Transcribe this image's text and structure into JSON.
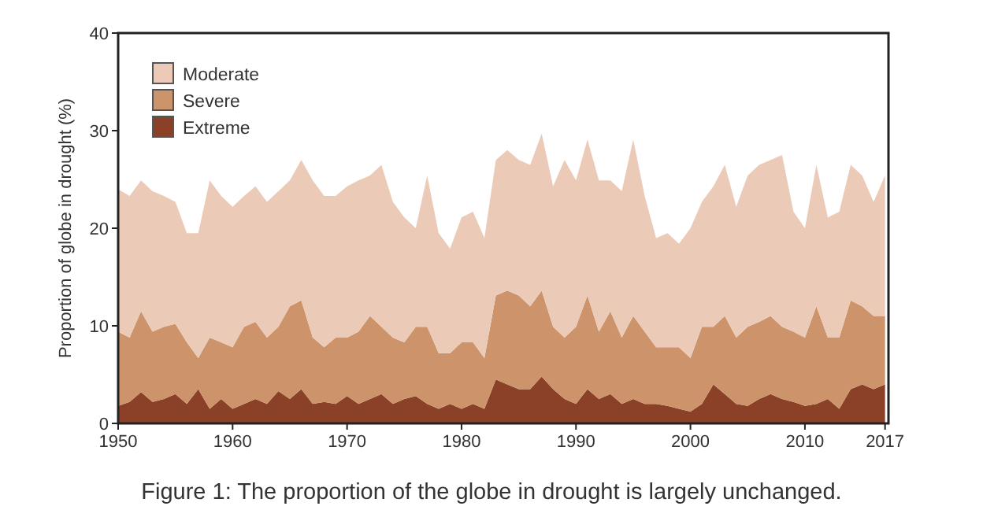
{
  "chart_data": {
    "type": "area",
    "stacked": true,
    "ylabel": "Proportion of globe in drought (%)",
    "x": [
      1950,
      1951,
      1952,
      1953,
      1954,
      1955,
      1956,
      1957,
      1958,
      1959,
      1960,
      1961,
      1962,
      1963,
      1964,
      1965,
      1966,
      1967,
      1968,
      1969,
      1970,
      1971,
      1972,
      1973,
      1974,
      1975,
      1976,
      1977,
      1978,
      1979,
      1980,
      1981,
      1982,
      1983,
      1984,
      1985,
      1986,
      1987,
      1988,
      1989,
      1990,
      1991,
      1992,
      1993,
      1994,
      1995,
      1996,
      1997,
      1998,
      1999,
      2000,
      2001,
      2002,
      2003,
      2004,
      2005,
      2006,
      2007,
      2008,
      2009,
      2010,
      2011,
      2012,
      2013,
      2014,
      2015,
      2016,
      2017
    ],
    "series": [
      {
        "name": "Extreme",
        "color": "#8a4127",
        "values": [
          1.8,
          2.2,
          3.2,
          2.2,
          2.5,
          3,
          2,
          3.5,
          1.5,
          2.5,
          1.5,
          2,
          2.5,
          2,
          3.3,
          2.5,
          3.5,
          2,
          2.2,
          2,
          2.8,
          2,
          2.5,
          3,
          2,
          2.5,
          2.8,
          2,
          1.5,
          2,
          1.5,
          2,
          1.5,
          4.5,
          4,
          3.5,
          3.5,
          4.8,
          3.5,
          2.5,
          2,
          3.5,
          2.5,
          3,
          2,
          2.5,
          2,
          2,
          1.8,
          1.5,
          1.2,
          2,
          4,
          3,
          2,
          1.8,
          2.5,
          3,
          2.5,
          2.2,
          1.8,
          2,
          2.5,
          1.5,
          3.5,
          4,
          3.5,
          4
        ]
      },
      {
        "name": "Severe",
        "color": "#cd946b",
        "values": [
          7.6,
          6.6,
          8.3,
          7.2,
          7.4,
          7.2,
          6.3,
          3.2,
          7.3,
          5.8,
          6.3,
          7.9,
          7.9,
          6.8,
          6.6,
          9.5,
          9.1,
          6.8,
          5.6,
          6.8,
          6,
          7.4,
          8.5,
          6.9,
          6.8,
          5.8,
          7.1,
          7.9,
          5.7,
          5.2,
          6.8,
          6.3,
          5.2,
          8.6,
          9.6,
          9.6,
          8.5,
          8.8,
          6.4,
          6.3,
          7.9,
          9.6,
          6.9,
          8.5,
          6.8,
          8.5,
          7.4,
          5.8,
          6,
          6.3,
          5.5,
          7.9,
          5.9,
          8,
          6.8,
          8.1,
          7.9,
          8,
          7.4,
          7.2,
          7,
          10,
          6.3,
          7.3,
          9.1,
          8,
          7.5,
          7
        ]
      },
      {
        "name": "Moderate",
        "color": "#ebcbb7",
        "values": [
          14.6,
          14.5,
          13.4,
          14.4,
          13.4,
          12.5,
          11.2,
          12.8,
          16.1,
          15,
          14.4,
          13.4,
          13.9,
          13.9,
          13.9,
          12.9,
          14.4,
          16.1,
          15.5,
          14.5,
          15.5,
          15.5,
          14.4,
          16.6,
          13.9,
          12.8,
          10.1,
          15.5,
          12.3,
          10.7,
          12.8,
          13.4,
          12.3,
          13.9,
          14.4,
          13.9,
          14.5,
          16.1,
          14.4,
          18.2,
          15,
          16,
          15.5,
          13.4,
          15,
          18.1,
          13.9,
          11.2,
          11.7,
          10.6,
          13.3,
          12.8,
          14.4,
          15.5,
          13.4,
          15.5,
          16.1,
          16,
          17.6,
          12.3,
          11.2,
          14.5,
          12.3,
          12.9,
          13.9,
          13.4,
          11.7,
          14.4
        ]
      }
    ],
    "xlim": [
      1950,
      2017.3
    ],
    "xticks": [
      1950,
      1960,
      1970,
      1980,
      1990,
      2000,
      2010,
      2017
    ],
    "ylim": [
      0,
      40
    ],
    "yticks": [
      0,
      10,
      20,
      30,
      40
    ],
    "grid": false,
    "legend": "top left",
    "annotations": [
      "Figure 1: The proportion of the globe in drought is largely unchanged."
    ]
  }
}
